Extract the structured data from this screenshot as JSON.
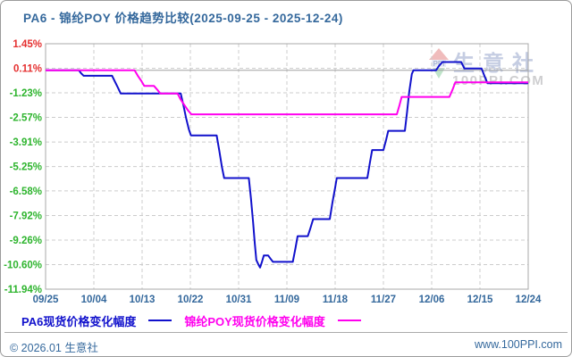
{
  "title": "PA6 - 锦纶POY 价格趋势比较(2025-09-25 - 2025-12-24)",
  "colors": {
    "title_text": "#34689c",
    "axis_text": "#34689c",
    "y_positive": "#e53030",
    "y_negative": "#2db42d",
    "grid": "#cccccc",
    "frame": "#a8a8a8",
    "zero_baseline": "#a0a0a0",
    "series_pa6": "#1111cc",
    "series_poy": "#ff00ee"
  },
  "watermark": {
    "brand": "生意社",
    "domain": "100PPI.COM"
  },
  "legend": [
    {
      "label": "PA6现货价格变化幅度",
      "color": "#1111cc"
    },
    {
      "label": "锦纶POY现货价格变化幅度",
      "color": "#ff00ee"
    }
  ],
  "footer": {
    "copyright": "© 2026.01 生意社",
    "website": "www.100PPI.com"
  },
  "chart_data": {
    "type": "line",
    "title": "PA6 - 锦纶POY 价格趋势比较(2025-09-25 - 2025-12-24)",
    "date_range": {
      "start": "2025-09-25",
      "end": "2025-12-24",
      "days_total": 90
    },
    "x_axis": {
      "tick_labels": [
        "09/25",
        "10/04",
        "10/13",
        "10/22",
        "10/31",
        "11/09",
        "11/18",
        "11/27",
        "12/06",
        "12/15",
        "12/24"
      ],
      "tick_day_offsets": [
        0,
        9,
        18,
        27,
        36,
        45,
        54,
        63,
        72,
        81,
        90
      ]
    },
    "y_axis": {
      "unit": "%",
      "tick_labels": [
        "1.45%",
        "0.11%",
        "-1.23%",
        "-2.57%",
        "-3.91%",
        "-5.25%",
        "-6.58%",
        "-7.92%",
        "-9.26%",
        "-10.60%",
        "-11.94%"
      ],
      "tick_values": [
        1.45,
        0.11,
        -1.23,
        -2.57,
        -3.91,
        -5.25,
        -6.58,
        -7.92,
        -9.26,
        -10.6,
        -11.94
      ],
      "min": -11.94,
      "max": 1.45,
      "grid": "dashed"
    },
    "zero_baseline": 0,
    "legend_position": "bottom",
    "series": [
      {
        "name": "PA6现货价格变化幅度",
        "color": "#1111cc",
        "points_day_pct": [
          [
            0,
            0
          ],
          [
            6.2,
            0
          ],
          [
            6.6,
            -0.15
          ],
          [
            7.1,
            -0.3
          ],
          [
            12.4,
            -0.3
          ],
          [
            12.9,
            -0.6
          ],
          [
            13.5,
            -0.95
          ],
          [
            14,
            -1.26
          ],
          [
            25.2,
            -1.26
          ],
          [
            25.7,
            -1.9
          ],
          [
            26.2,
            -2.6
          ],
          [
            26.7,
            -3.2
          ],
          [
            27.1,
            -3.55
          ],
          [
            31.9,
            -3.55
          ],
          [
            32.4,
            -4.4
          ],
          [
            32.9,
            -5.3
          ],
          [
            33.3,
            -5.88
          ],
          [
            37.9,
            -5.88
          ],
          [
            38.3,
            -7.0
          ],
          [
            38.7,
            -8.3
          ],
          [
            39.0,
            -9.4
          ],
          [
            39.3,
            -10.35
          ],
          [
            39.7,
            -10.6
          ],
          [
            40.0,
            -10.76
          ],
          [
            40.4,
            -10.4
          ],
          [
            40.7,
            -10.1
          ],
          [
            41.5,
            -10.1
          ],
          [
            42.0,
            -10.3
          ],
          [
            42.4,
            -10.45
          ],
          [
            46.1,
            -10.45
          ],
          [
            46.6,
            -9.7
          ],
          [
            47.0,
            -9.05
          ],
          [
            48.9,
            -9.05
          ],
          [
            49.4,
            -8.6
          ],
          [
            49.9,
            -8.12
          ],
          [
            53.0,
            -8.12
          ],
          [
            53.5,
            -7.2
          ],
          [
            54.0,
            -6.4
          ],
          [
            54.3,
            -5.88
          ],
          [
            60.0,
            -5.88
          ],
          [
            60.5,
            -5.0
          ],
          [
            60.9,
            -4.35
          ],
          [
            63.0,
            -4.35
          ],
          [
            63.5,
            -3.8
          ],
          [
            63.9,
            -3.3
          ],
          [
            67.0,
            -3.3
          ],
          [
            67.4,
            -2.3
          ],
          [
            67.8,
            -1.2
          ],
          [
            68.3,
            -0.2
          ],
          [
            68.6,
            0
          ],
          [
            72.8,
            0
          ],
          [
            73.4,
            0.25
          ],
          [
            74.0,
            0.45
          ],
          [
            77.5,
            0.45
          ],
          [
            78.1,
            0.1
          ],
          [
            81.3,
            0.1
          ],
          [
            81.9,
            -0.35
          ],
          [
            82.4,
            -0.7
          ],
          [
            90,
            -0.7
          ]
        ]
      },
      {
        "name": "锦纶POY现货价格变化幅度",
        "color": "#ff00ee",
        "points_day_pct": [
          [
            0,
            0
          ],
          [
            16.6,
            0
          ],
          [
            17.2,
            -0.3
          ],
          [
            17.9,
            -0.6
          ],
          [
            18.4,
            -0.85
          ],
          [
            20.2,
            -0.85
          ],
          [
            20.8,
            -1.05
          ],
          [
            21.4,
            -1.26
          ],
          [
            24.6,
            -1.26
          ],
          [
            25.2,
            -1.6
          ],
          [
            26.0,
            -1.95
          ],
          [
            26.6,
            -2.2
          ],
          [
            27.2,
            -2.4
          ],
          [
            65.5,
            -2.4
          ],
          [
            66.0,
            -1.9
          ],
          [
            66.4,
            -1.45
          ],
          [
            75.3,
            -1.45
          ],
          [
            75.9,
            -1.05
          ],
          [
            76.4,
            -0.66
          ],
          [
            90,
            -0.66
          ]
        ]
      }
    ]
  }
}
